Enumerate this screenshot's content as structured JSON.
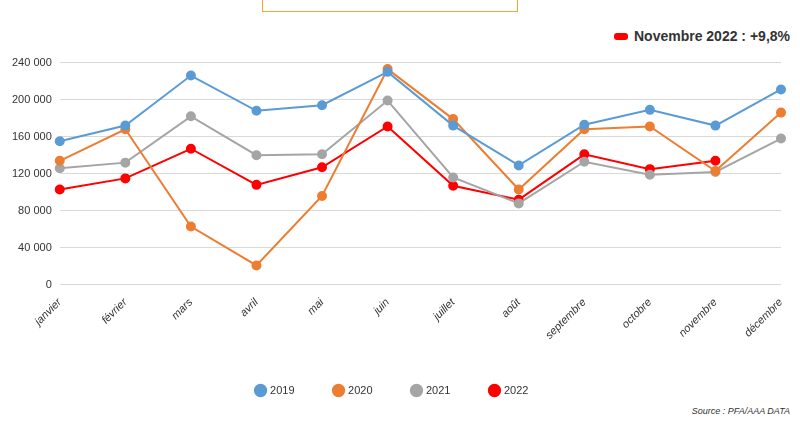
{
  "chart_data": {
    "type": "line",
    "categories": [
      "janvier",
      "février",
      "mars",
      "avril",
      "mai",
      "juin",
      "juillet",
      "août",
      "septembre",
      "octobre",
      "novembre",
      "décembre"
    ],
    "series": [
      {
        "name": "2019",
        "color": "#5b9bd5",
        "values": [
          155000,
          172000,
          226000,
          188000,
          194000,
          230000,
          172000,
          129000,
          173000,
          189000,
          172000,
          211000
        ]
      },
      {
        "name": "2020",
        "color": "#ed7d31",
        "values": [
          134000,
          168000,
          63000,
          21000,
          96000,
          233000,
          179000,
          103000,
          168000,
          171000,
          123000,
          186000
        ]
      },
      {
        "name": "2021",
        "color": "#a5a5a5",
        "values": [
          126000,
          132000,
          182000,
          140000,
          141000,
          199000,
          116000,
          88000,
          133000,
          119000,
          122000,
          158000
        ]
      },
      {
        "name": "2022",
        "color": "#ff0000",
        "values": [
          103000,
          115000,
          147000,
          108000,
          127000,
          171000,
          107000,
          92000,
          141000,
          125000,
          134000,
          null
        ]
      }
    ],
    "ylim": [
      0,
      240000
    ],
    "yticks": [
      0,
      {
        "value": 40000,
        "label": "40 000"
      },
      {
        "value": 80000,
        "label": "80 000"
      },
      {
        "value": 120000,
        "label": "120 000"
      },
      {
        "value": 160000,
        "label": "160 000"
      },
      {
        "value": 200000,
        "label": "200 000"
      },
      {
        "value": 240000,
        "label": "240 000"
      }
    ],
    "grid": true,
    "legend": "bottom",
    "marker": "circle",
    "annotations": [
      {
        "text": "Novembre 2022  : +9,8%",
        "color": "#ff0000"
      }
    ],
    "source": "Source : PFA/AAA DATA"
  }
}
